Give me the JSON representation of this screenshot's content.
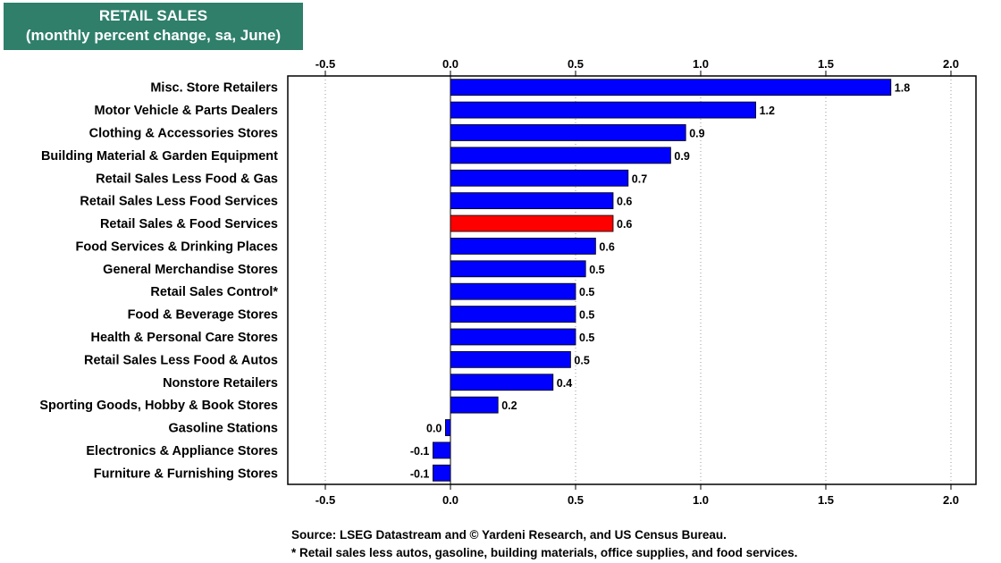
{
  "header": {
    "title": "RETAIL SALES",
    "subtitle": "(monthly percent change, sa,  June)"
  },
  "footer": {
    "source": "Source: LSEG Datastream and © Yardeni Research, and US Census Bureau.",
    "note": "* Retail sales less autos, gasoline, building materials, office supplies, and food services."
  },
  "chart_data": {
    "type": "bar",
    "orientation": "horizontal",
    "title": "RETAIL SALES",
    "subtitle": "(monthly percent change, sa,  June)",
    "xlim": [
      -0.65,
      2.1
    ],
    "x_ticks": [
      "-0.5",
      "0.0",
      "0.5",
      "1.0",
      "1.5",
      "2.0"
    ],
    "x_tick_values": [
      -0.5,
      0.0,
      0.5,
      1.0,
      1.5,
      2.0
    ],
    "grid": "vertical dotted",
    "bar_color": "#0000ff",
    "highlight_color": "#ff0000",
    "categories": [
      "Misc. Store Retailers",
      "Motor Vehicle & Parts Dealers",
      "Clothing & Accessories Stores",
      "Building Material & Garden Equipment",
      "Retail Sales Less Food & Gas",
      "Retail Sales Less Food Services",
      "Retail Sales & Food Services",
      "Food Services & Drinking Places",
      "General Merchandise Stores",
      "Retail Sales Control*",
      "Food & Beverage Stores",
      "Health & Personal Care Stores",
      "Retail Sales Less Food & Autos",
      "Nonstore Retailers",
      "Sporting Goods, Hobby & Book Stores",
      "Gasoline Stations",
      "Electronics & Appliance Stores",
      "Furniture & Furnishing Stores"
    ],
    "values": [
      1.76,
      1.22,
      0.94,
      0.88,
      0.71,
      0.65,
      0.65,
      0.58,
      0.54,
      0.5,
      0.5,
      0.5,
      0.48,
      0.41,
      0.19,
      -0.02,
      -0.07,
      -0.07
    ],
    "labels": [
      "1.8",
      "1.2",
      "0.9",
      "0.9",
      "0.7",
      "0.6",
      "0.6",
      "0.6",
      "0.5",
      "0.5",
      "0.5",
      "0.5",
      "0.5",
      "0.4",
      "0.2",
      "0.0",
      "-0.1",
      "-0.1"
    ],
    "highlight_index": 6
  }
}
